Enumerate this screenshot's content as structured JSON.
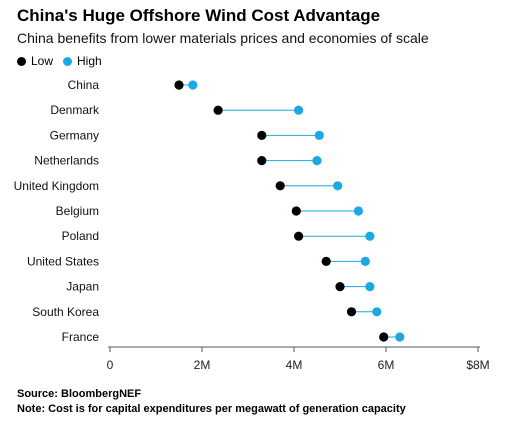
{
  "title": "China's Huge Offshore Wind Cost Advantage",
  "subtitle": "China benefits from lower materials prices and economies of scale",
  "footer": {
    "source": "Source: BloombergNEF",
    "note": "Note: Cost is for capital expenditures per megawatt of generation capacity"
  },
  "colors": {
    "low": "#000000",
    "high": "#1ba8e3",
    "axis": "#555555"
  },
  "chart_data": {
    "type": "scatter",
    "subtype": "dumbbell",
    "title": "China's Huge Offshore Wind Cost Advantage",
    "subtitle": "China benefits from lower materials prices and economies of scale",
    "xlim": [
      0,
      8
    ],
    "x_ticks": [
      0,
      2,
      4,
      6,
      8
    ],
    "x_tick_labels": [
      "0",
      "2M",
      "4M",
      "6M",
      "$8M"
    ],
    "legend_position": "top-left",
    "grid": false,
    "categories": [
      "China",
      "Denmark",
      "Germany",
      "Netherlands",
      "United Kingdom",
      "Belgium",
      "Poland",
      "United States",
      "Japan",
      "South Korea",
      "France"
    ],
    "series": [
      {
        "name": "Low",
        "values": [
          1.5,
          2.35,
          3.3,
          3.3,
          3.7,
          4.05,
          4.1,
          4.7,
          5.0,
          5.25,
          5.95
        ]
      },
      {
        "name": "High",
        "values": [
          1.8,
          4.1,
          4.55,
          4.5,
          4.95,
          5.4,
          5.65,
          5.55,
          5.65,
          5.8,
          6.3
        ]
      }
    ]
  }
}
